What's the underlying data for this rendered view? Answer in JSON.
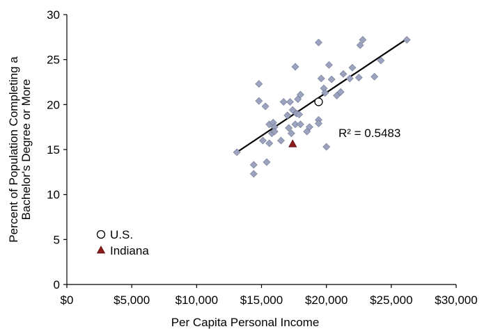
{
  "chart_data": {
    "type": "scatter",
    "xlabel": "Per Capita Personal Income",
    "ylabel_lines": [
      "Percent of Population Completing a",
      "Bachelor's Degree or More"
    ],
    "xlim": [
      0,
      30000
    ],
    "ylim": [
      0,
      30
    ],
    "x_ticks": [
      0,
      5000,
      10000,
      15000,
      20000,
      25000,
      30000
    ],
    "x_tick_labels": [
      "$0",
      "$5,000",
      "$10,000",
      "$15,000",
      "$20,000",
      "$25,000",
      "$30,000"
    ],
    "y_ticks": [
      0,
      5,
      10,
      15,
      20,
      25,
      30
    ],
    "y_tick_labels": [
      "0",
      "5",
      "10",
      "15",
      "20",
      "25",
      "30"
    ],
    "grid": false,
    "annotation": "R² = 0.5483",
    "trendline": {
      "x": [
        13100,
        26200
      ],
      "y": [
        14.7,
        27.3
      ]
    },
    "series": [
      {
        "marker": "diamond",
        "color": "#9ba3bf",
        "points": [
          [
            13100,
            14.7
          ],
          [
            14400,
            13.3
          ],
          [
            14400,
            12.3
          ],
          [
            14800,
            22.3
          ],
          [
            14800,
            20.4
          ],
          [
            15100,
            16.0
          ],
          [
            15300,
            19.8
          ],
          [
            15400,
            13.6
          ],
          [
            15600,
            15.7
          ],
          [
            15600,
            17.8
          ],
          [
            15800,
            16.8
          ],
          [
            15900,
            18.0
          ],
          [
            16000,
            17.5
          ],
          [
            16000,
            17.0
          ],
          [
            16500,
            16.0
          ],
          [
            16700,
            20.3
          ],
          [
            17000,
            18.8
          ],
          [
            17100,
            17.4
          ],
          [
            17200,
            20.3
          ],
          [
            17300,
            16.8
          ],
          [
            17400,
            19.4
          ],
          [
            17600,
            17.8
          ],
          [
            17600,
            24.2
          ],
          [
            17700,
            19.0
          ],
          [
            17800,
            20.6
          ],
          [
            17900,
            18.9
          ],
          [
            18000,
            17.8
          ],
          [
            18000,
            21.1
          ],
          [
            18500,
            17.0
          ],
          [
            18700,
            17.5
          ],
          [
            19400,
            26.9
          ],
          [
            19400,
            18.3
          ],
          [
            19400,
            17.9
          ],
          [
            19600,
            22.9
          ],
          [
            19800,
            21.8
          ],
          [
            19900,
            21.3
          ],
          [
            20000,
            15.3
          ],
          [
            20200,
            24.4
          ],
          [
            20400,
            22.8
          ],
          [
            20800,
            21.0
          ],
          [
            21100,
            21.4
          ],
          [
            21300,
            23.4
          ],
          [
            21800,
            22.9
          ],
          [
            22000,
            24.1
          ],
          [
            22500,
            23.0
          ],
          [
            22600,
            26.6
          ],
          [
            22800,
            27.2
          ],
          [
            23700,
            23.1
          ],
          [
            24200,
            24.9
          ],
          [
            26200,
            27.2
          ]
        ]
      },
      {
        "name": "U.S.",
        "marker": "open-circle",
        "color": "#000000",
        "points": [
          [
            19400,
            20.3
          ]
        ]
      },
      {
        "name": "Indiana",
        "marker": "triangle",
        "color": "#8b1a1a",
        "points": [
          [
            17400,
            15.6
          ]
        ]
      }
    ]
  }
}
